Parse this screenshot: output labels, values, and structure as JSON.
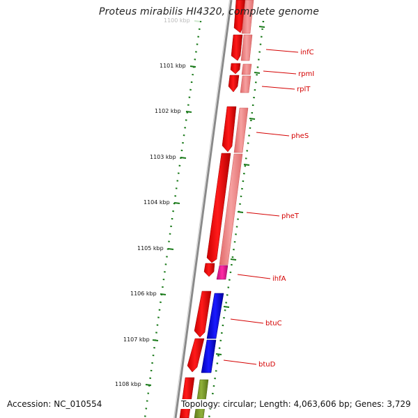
{
  "title": "Proteus mirabilis HI4320, complete genome",
  "footer": {
    "accession": "Accession: NC_010554",
    "topology": "Topology: circular; Length: 4,063,606 bp; Genes: 3,729"
  },
  "scale_labels": [
    "1100 kbp",
    "1101 kbp",
    "1102 kbp",
    "1103 kbp",
    "1104 kbp",
    "1105 kbp",
    "1106 kbp",
    "1107 kbp",
    "1108 kbp"
  ],
  "gene_labels": [
    "infC",
    "rpmI",
    "rplT",
    "pheS",
    "pheT",
    "ihfA",
    "btuC",
    "btuD"
  ],
  "colors": {
    "cds": "#ff0000",
    "cds_light": "#f08080",
    "ihfA_feature": "#e0208f",
    "btu_feature": "#0000ee",
    "olive_feature": "#7a9a2a",
    "tick": "#1a7a1a",
    "backbone": "#888888",
    "label": "#d40000"
  }
}
